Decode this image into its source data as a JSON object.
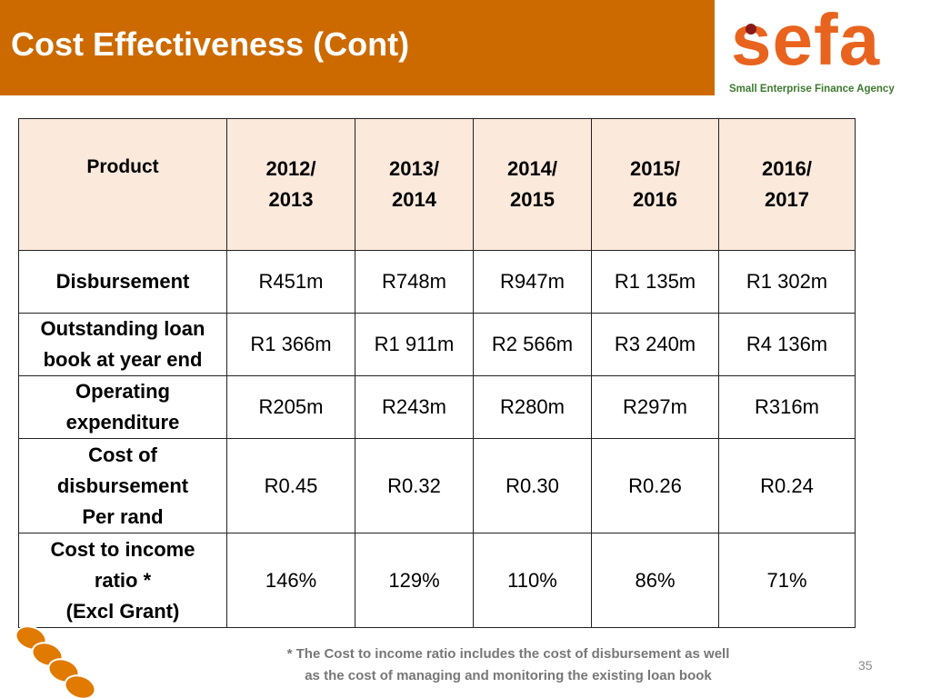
{
  "slide": {
    "title": "Cost Effectiveness (Cont)",
    "page_number": "35"
  },
  "logo": {
    "wordmark": "sefa",
    "tagline": "Small Enterprise Finance Agency",
    "colors": {
      "wordmark": "#e8641e",
      "dot": "#8b1a1a",
      "tagline": "#3d7a2f"
    }
  },
  "colors": {
    "title_bar": "#cc6a00",
    "header_fill": "#fbe9dc",
    "decoration": "#e07a00"
  },
  "table": {
    "header": {
      "product": "Product",
      "years": [
        [
          "2012/",
          "2013"
        ],
        [
          "2013/",
          "2014"
        ],
        [
          "2014/",
          "2015"
        ],
        [
          "2015/",
          "2016"
        ],
        [
          "2016/",
          "2017"
        ]
      ]
    },
    "rows": [
      {
        "label": [
          "Disbursement"
        ],
        "values": [
          "R451m",
          "R748m",
          "R947m",
          "R1 135m",
          "R1 302m"
        ]
      },
      {
        "label": [
          "Outstanding loan",
          "book at year end"
        ],
        "values": [
          "R1 366m",
          "R1 911m",
          "R2 566m",
          "R3 240m",
          "R4 136m"
        ]
      },
      {
        "label": [
          "Operating",
          "expenditure"
        ],
        "values": [
          "R205m",
          "R243m",
          "R280m",
          "R297m",
          "R316m"
        ]
      },
      {
        "label": [
          "Cost of",
          "disbursement",
          "Per rand"
        ],
        "values": [
          "R0.45",
          "R0.32",
          "R0.30",
          "R0.26",
          "R0.24"
        ]
      },
      {
        "label": [
          "Cost to income",
          "ratio *",
          "(Excl Grant)"
        ],
        "values": [
          "146%",
          "129%",
          "110%",
          "86%",
          "71%"
        ]
      }
    ]
  },
  "footnote": [
    "* The Cost to income ratio includes the cost of disbursement as well",
    "as the cost of managing and monitoring the existing loan book"
  ]
}
